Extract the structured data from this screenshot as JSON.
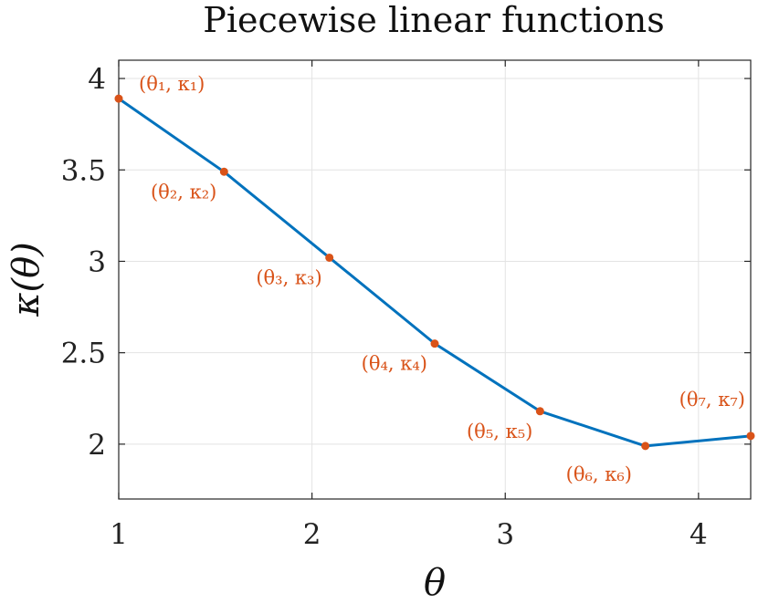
{
  "chart_data": {
    "type": "line",
    "title": "Piecewise linear functions",
    "xlabel": "θ",
    "ylabel": "κ(θ)",
    "xlim": [
      1,
      4.27
    ],
    "ylim": [
      1.7,
      4.1
    ],
    "xticks": [
      {
        "value": 1,
        "label": "1"
      },
      {
        "value": 2,
        "label": "2"
      },
      {
        "value": 3,
        "label": "3"
      },
      {
        "value": 4,
        "label": "4"
      }
    ],
    "yticks": [
      {
        "value": 2,
        "label": "2"
      },
      {
        "value": 2.5,
        "label": "2.5"
      },
      {
        "value": 3,
        "label": "3"
      },
      {
        "value": 3.5,
        "label": "3.5"
      },
      {
        "value": 4,
        "label": "4"
      }
    ],
    "grid": true,
    "line_color": "#0072BD",
    "marker_color": "#D95319",
    "series": [
      {
        "x": [
          1.0,
          1.545,
          2.09,
          2.635,
          3.18,
          3.725,
          4.27
        ],
        "y": [
          3.89,
          3.49,
          3.02,
          2.55,
          2.18,
          1.99,
          2.045
        ]
      }
    ],
    "annotations": [
      {
        "text": "(θ₁, κ₁)",
        "x": 1.0,
        "y": 3.89
      },
      {
        "text": "(θ₂, κ₂)",
        "x": 1.545,
        "y": 3.49
      },
      {
        "text": "(θ₃, κ₃)",
        "x": 2.09,
        "y": 3.02
      },
      {
        "text": "(θ₄, κ₄)",
        "x": 2.635,
        "y": 2.55
      },
      {
        "text": "(θ₅, κ₅)",
        "x": 3.18,
        "y": 2.18
      },
      {
        "text": "(θ₆, κ₆)",
        "x": 3.725,
        "y": 1.99
      },
      {
        "text": "(θ₇, κ₇)",
        "x": 4.27,
        "y": 2.045
      }
    ]
  }
}
